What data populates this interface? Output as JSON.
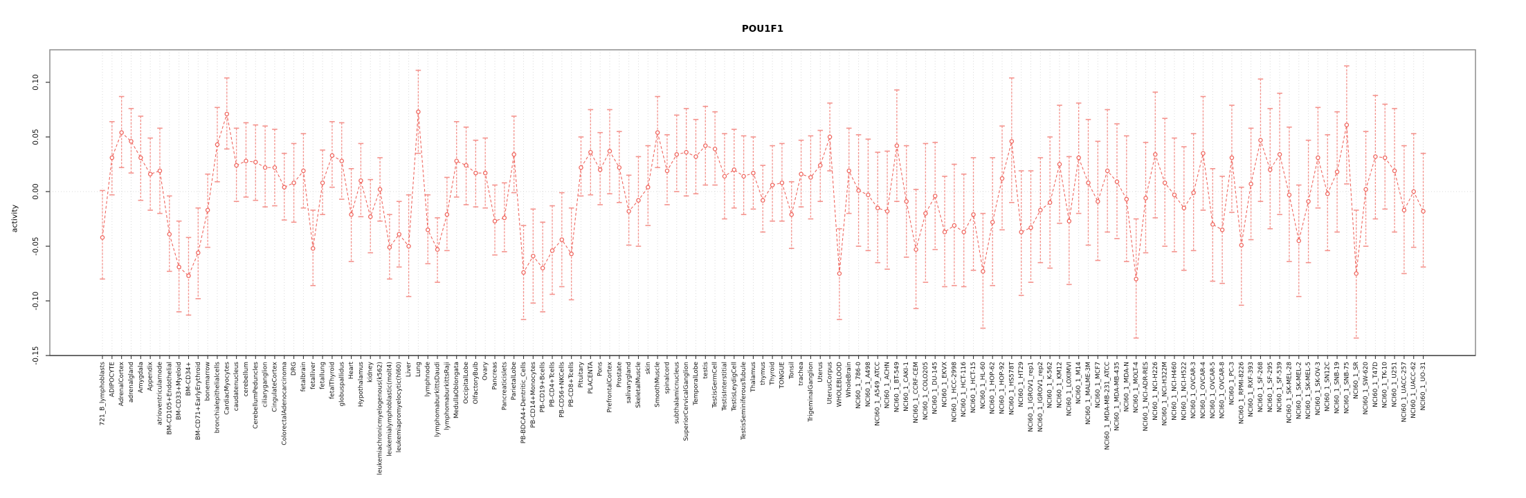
{
  "chart_data": {
    "type": "scatter",
    "title": "POU1F1",
    "ylabel": "activity",
    "xlabel": "",
    "ytick_labels": [
      "0.10",
      "0.05",
      "0.00",
      "-0.05",
      "-0.10",
      "-0.15"
    ],
    "ylim": [
      -0.155,
      0.13
    ],
    "grid": "vertical dotted line per category; dotted horizontal line at zero",
    "legend_position": "none",
    "marker": "open-circle",
    "line_style": "dashed",
    "error_bars": true,
    "colors": {
      "series": "#ef655d",
      "error_bar": "#f4928c",
      "grid": "#d9d9d9",
      "box_border": "#8c8c8c",
      "axis": "#333333",
      "text": "#111111"
    },
    "categories": [
      "721_B_lymphoblasts",
      "ADIPOCYTE",
      "AdrenalCortex",
      "adrenalgland",
      "Amygdala",
      "Appendix",
      "atrioventricularnode",
      "BM-CD105+Endothelial",
      "BM-CD33+Myeloid",
      "BM-CD34+",
      "BM-CD71+EarlyErythroid",
      "bonemarrow",
      "bronchialepithelialcells",
      "CardiacMyocytes",
      "caudatenucleus",
      "cerebellum",
      "CerebellumPeduncles",
      "ciliaryganglion",
      "CingulateCortex",
      "ColorectalAdenocarcinoma",
      "DRG",
      "fetalbrain",
      "fetalliver",
      "fetallung",
      "fetalThyroid",
      "globuspallidus",
      "Heart",
      "Hypothalamus",
      "kidney",
      "leukemiachronicmyelogenous(k562)",
      "leukemialymphoblastic(molt4)",
      "leukemiapromyelocytic(hl60)",
      "Liver",
      "Lung",
      "lymphnode",
      "lymphomaburkittsDaudi",
      "lymphomaburkittsRaji",
      "MedullaOblongata",
      "OccipitalLobe",
      "OlfactoryBulb",
      "Ovary",
      "Pancreas",
      "Pancreaticislets",
      "ParietalLobe",
      "PB-BDCA4+Dentritic_Cells",
      "PB-CD14+Monocytes",
      "PB-CD19+Bcells",
      "PB-CD4+Tcells",
      "PB-CD56+NKCells",
      "PB-CD8+Tcells",
      "Pituitary",
      "PLACENTA",
      "Pons",
      "PrefrontalCortex",
      "Prostate",
      "salivarygland",
      "SkeletalMuscle",
      "skin",
      "SmoothMuscle",
      "spinalcord",
      "subthalamicnucleus",
      "SuperiorCervicalGanglion",
      "TemporalLobe",
      "testis",
      "TestisGermCell",
      "TestisInterstitial",
      "TestisLeydigCell",
      "TestisSeminiferousTubule",
      "Thalamus",
      "thymus",
      "Thyroid",
      "TONGUE",
      "Tonsil",
      "trachea",
      "TrigeminalGanglion",
      "Uterus",
      "UterusCorpus",
      "WHOLEBLOOD",
      "WholeBrain",
      "NCI60_1_786-0",
      "NCI60_1_A498",
      "NCI60_1_A549_ATCC",
      "NCI60_1_ACHN",
      "NCI60_1_BT-549",
      "NCI60_1_CAKI-1",
      "NCI60_1_CCRF-CEM",
      "NCI60_1_COLO205",
      "NCI60_1_DU-145",
      "NCI60_1_EKVX",
      "NCI60_1_HCC-2998",
      "NCI60_1_HCT-116",
      "NCI60_1_HCT-15",
      "NCI60_1_HL-60",
      "NCI60_1_HOP-62",
      "NCI60_1_HOP-92",
      "NCI60_1_HS578T",
      "NCI60_1_HT29",
      "NCI60_1_IGROV1_rep1",
      "NCI60_1_IGROV1_rep2",
      "NCI60_1_K-562",
      "NCI60_1_KM12",
      "NCI60_1_LOXIMVI",
      "NCI60_1_M14",
      "NCI60_1_MALME-3M",
      "NCI60_1_MCF7",
      "NCI60_1_MDA-MB-231_ATCC",
      "NCI60_1_MDA-MB-435",
      "NCI60_1_MDA-N",
      "NCI60_1_MOLT-4",
      "NCI60_1_NCI-ADR-RES",
      "NCI60_1_NCI-H226",
      "NCI60_1_NCI-H322M",
      "NCI60_1_NCI-H460",
      "NCI60_1_NCI-H522",
      "NCI60_1_OVCAR-3",
      "NCI60_1_OVCAR-4",
      "NCI60_1_OVCAR-5",
      "NCI60_1_OVCAR-8",
      "NCI60_1_PC-3",
      "NCI60_1_RPMI-8226",
      "NCI60_1_RXF-393",
      "NCI60_1_SF-268",
      "NCI60_1_SF-295",
      "NCI60_1_SF-539",
      "NCI60_1_SK-MEL-28",
      "NCI60_1_SK-MEL-2",
      "NCI60_1_SK-MEL-5",
      "NCI60_1_SK-OV-3",
      "NCI60_1_SN12C",
      "NCI60_1_SNB-19",
      "NCI60_1_SNB-75",
      "NCI60_1_SR",
      "NCI60_1_SW-620",
      "NCI60_1_T47D",
      "NCI60_1_TK-10",
      "NCI60_1_U251",
      "NCI60_1_UACC-257",
      "NCI60_1_UACC-62",
      "NCI60_1_UO-31"
    ],
    "series": [
      {
        "name": "activity",
        "values": [
          -0.042,
          0.031,
          0.054,
          0.046,
          0.031,
          0.016,
          0.019,
          -0.039,
          -0.069,
          -0.077,
          -0.056,
          -0.017,
          0.043,
          0.071,
          0.024,
          0.028,
          0.027,
          0.022,
          0.022,
          0.004,
          0.008,
          0.019,
          -0.052,
          0.008,
          0.033,
          0.028,
          -0.021,
          0.01,
          -0.023,
          0.002,
          -0.051,
          -0.039,
          -0.05,
          0.073,
          -0.035,
          -0.053,
          -0.021,
          0.028,
          0.024,
          0.017,
          0.017,
          -0.027,
          -0.024,
          0.034,
          -0.074,
          -0.059,
          -0.07,
          -0.054,
          -0.044,
          -0.057,
          0.022,
          0.036,
          0.02,
          0.037,
          0.022,
          -0.018,
          -0.008,
          0.004,
          0.054,
          0.019,
          0.034,
          0.036,
          0.032,
          0.042,
          0.039,
          0.014,
          0.02,
          0.014,
          0.017,
          -0.008,
          0.006,
          0.008,
          -0.021,
          0.016,
          0.013,
          0.024,
          0.05,
          -0.075,
          0.019,
          0.001,
          -0.003,
          -0.015,
          -0.018,
          0.042,
          -0.009,
          -0.053,
          -0.02,
          -0.004,
          -0.037,
          -0.031,
          -0.037,
          -0.021,
          -0.073,
          -0.028,
          0.012,
          0.046,
          -0.037,
          -0.033,
          -0.017,
          -0.01,
          0.025,
          -0.027,
          0.031,
          0.008,
          -0.009,
          0.019,
          0.009,
          -0.007,
          -0.08,
          -0.006,
          0.034,
          0.008,
          -0.003,
          -0.015,
          -0.001,
          0.035,
          -0.03,
          -0.035,
          0.031,
          -0.049,
          0.007,
          0.047,
          0.02,
          0.034,
          -0.003,
          -0.045,
          -0.009,
          0.031,
          -0.002,
          0.018,
          0.061,
          -0.075,
          0.002,
          0.032,
          0.031,
          0.019,
          -0.017,
          0.0,
          -0.018
        ],
        "err_lo": [
          -0.08,
          -0.003,
          0.022,
          0.017,
          -0.008,
          -0.017,
          -0.02,
          -0.073,
          -0.11,
          -0.113,
          -0.098,
          -0.051,
          0.009,
          0.039,
          -0.009,
          -0.005,
          -0.008,
          -0.014,
          -0.013,
          -0.026,
          -0.028,
          -0.015,
          -0.086,
          -0.021,
          0.004,
          -0.007,
          -0.064,
          -0.023,
          -0.056,
          -0.027,
          -0.08,
          -0.069,
          -0.096,
          0.035,
          -0.066,
          -0.083,
          -0.054,
          -0.005,
          -0.012,
          -0.014,
          -0.015,
          -0.058,
          -0.055,
          -0.001,
          -0.117,
          -0.102,
          -0.11,
          -0.094,
          -0.087,
          -0.099,
          -0.004,
          -0.003,
          -0.012,
          -0.002,
          -0.01,
          -0.049,
          -0.05,
          -0.031,
          0.022,
          -0.012,
          0.0,
          -0.004,
          -0.002,
          0.006,
          0.006,
          -0.025,
          -0.015,
          -0.021,
          -0.016,
          -0.037,
          -0.027,
          -0.027,
          -0.052,
          -0.014,
          -0.025,
          -0.009,
          0.019,
          -0.117,
          -0.02,
          -0.05,
          -0.054,
          -0.065,
          -0.071,
          -0.009,
          -0.06,
          -0.107,
          -0.083,
          -0.053,
          -0.087,
          -0.086,
          -0.087,
          -0.072,
          -0.125,
          -0.086,
          -0.035,
          -0.01,
          -0.095,
          -0.083,
          -0.065,
          -0.07,
          -0.029,
          -0.085,
          -0.02,
          -0.049,
          -0.063,
          -0.037,
          -0.043,
          -0.064,
          -0.134,
          -0.056,
          -0.024,
          -0.05,
          -0.055,
          -0.072,
          -0.054,
          -0.017,
          -0.082,
          -0.084,
          -0.019,
          -0.104,
          -0.044,
          -0.009,
          -0.034,
          -0.021,
          -0.064,
          -0.096,
          -0.065,
          -0.015,
          -0.054,
          -0.037,
          0.007,
          -0.134,
          -0.05,
          -0.025,
          -0.016,
          -0.037,
          -0.075,
          -0.051,
          -0.069
        ],
        "err_hi": [
          0.001,
          0.064,
          0.087,
          0.076,
          0.069,
          0.049,
          0.058,
          -0.004,
          -0.027,
          -0.042,
          -0.015,
          0.016,
          0.077,
          0.104,
          0.058,
          0.063,
          0.061,
          0.06,
          0.057,
          0.035,
          0.044,
          0.053,
          -0.017,
          0.038,
          0.064,
          0.063,
          0.021,
          0.044,
          0.011,
          0.031,
          -0.021,
          -0.009,
          -0.003,
          0.111,
          -0.003,
          -0.024,
          0.013,
          0.064,
          0.059,
          0.047,
          0.049,
          0.006,
          0.008,
          0.069,
          -0.031,
          -0.016,
          -0.028,
          -0.013,
          -0.001,
          -0.015,
          0.05,
          0.075,
          0.054,
          0.075,
          0.055,
          0.015,
          0.032,
          0.042,
          0.087,
          0.052,
          0.07,
          0.076,
          0.066,
          0.078,
          0.073,
          0.053,
          0.057,
          0.051,
          0.05,
          0.024,
          0.042,
          0.044,
          0.009,
          0.047,
          0.051,
          0.056,
          0.081,
          -0.034,
          0.058,
          0.052,
          0.048,
          0.036,
          0.037,
          0.093,
          0.042,
          0.002,
          0.044,
          0.045,
          0.014,
          0.025,
          0.016,
          0.031,
          -0.02,
          0.031,
          0.06,
          0.104,
          0.019,
          0.019,
          0.031,
          0.05,
          0.079,
          0.032,
          0.081,
          0.066,
          0.046,
          0.075,
          0.062,
          0.051,
          -0.025,
          0.045,
          0.091,
          0.067,
          0.049,
          0.041,
          0.053,
          0.087,
          0.021,
          0.014,
          0.079,
          0.004,
          0.058,
          0.103,
          0.076,
          0.09,
          0.059,
          0.006,
          0.047,
          0.077,
          0.052,
          0.073,
          0.115,
          -0.017,
          0.055,
          0.088,
          0.08,
          0.076,
          0.042,
          0.053,
          0.035
        ]
      }
    ]
  }
}
